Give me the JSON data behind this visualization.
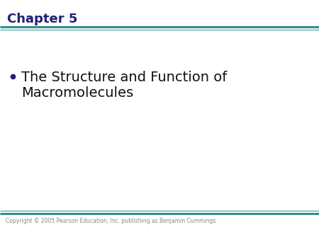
{
  "chapter_title": "Chapter 5",
  "chapter_title_color": "#1f1f7a",
  "bullet_color": "#1f1f7a",
  "bullet_text_color": "#111111",
  "top_line_color": "#2a9090",
  "bottom_line_color": "#2a9090",
  "copyright_text": "Copyright © 2005 Pearson Education, Inc. publishing as Benjamin Cummings",
  "copyright_color": "#888888",
  "background_color": "#ffffff",
  "chapter_fontsize": 13,
  "bullet_fontsize": 14,
  "copyright_fontsize": 5.5,
  "text_line1": "The Structure and Function of",
  "text_line2": "Macromolecules"
}
